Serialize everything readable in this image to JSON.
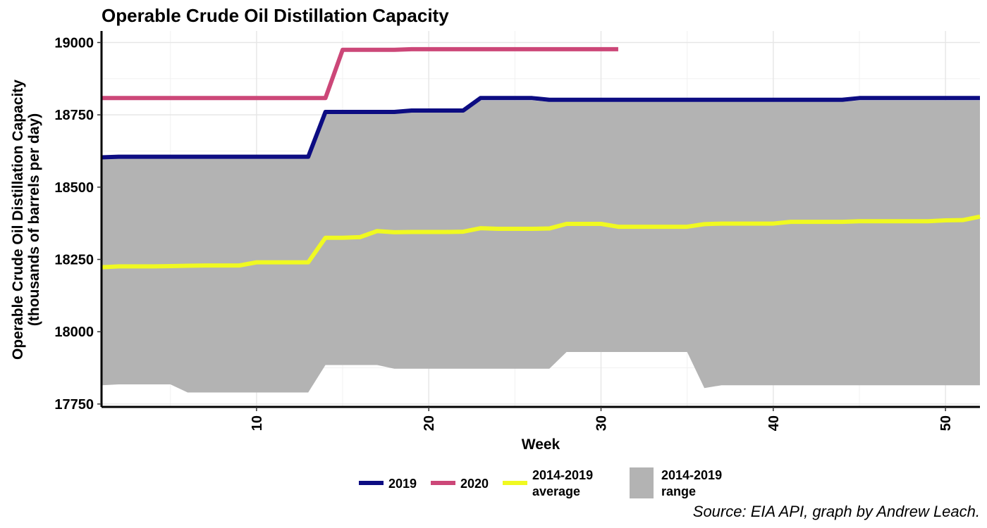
{
  "chart_data": {
    "type": "line",
    "title": "Operable Crude Oil Distillation Capacity",
    "xlabel": "Week",
    "ylabel_lines": [
      "Operable Crude Oil Distillation Capacity",
      "(thousands of barrels per day)"
    ],
    "xlim": [
      1,
      52
    ],
    "ylim": [
      17740,
      19040
    ],
    "x_ticks": [
      10,
      20,
      30,
      40,
      50
    ],
    "y_ticks": [
      17750,
      18000,
      18250,
      18500,
      18750,
      19000
    ],
    "grid": true,
    "legend_position": "bottom",
    "caption": "Source: EIA API, graph by Andrew Leach.",
    "range": {
      "name": "2014-2019 range",
      "color": "#b3b3b3",
      "x": [
        1,
        2,
        3,
        4,
        5,
        6,
        7,
        8,
        9,
        10,
        11,
        12,
        13,
        14,
        15,
        16,
        17,
        18,
        19,
        20,
        21,
        22,
        23,
        24,
        25,
        26,
        27,
        28,
        29,
        30,
        31,
        32,
        33,
        34,
        35,
        36,
        37,
        38,
        39,
        40,
        41,
        42,
        43,
        44,
        45,
        46,
        47,
        48,
        49,
        50,
        51,
        52
      ],
      "lower": [
        17815,
        17818,
        17818,
        17818,
        17818,
        17790,
        17790,
        17790,
        17790,
        17790,
        17790,
        17790,
        17790,
        17885,
        17885,
        17885,
        17885,
        17872,
        17872,
        17872,
        17872,
        17872,
        17872,
        17872,
        17872,
        17872,
        17872,
        17930,
        17930,
        17930,
        17930,
        17930,
        17930,
        17930,
        17930,
        17805,
        17815,
        17815,
        17815,
        17815,
        17815,
        17815,
        17815,
        17815,
        17815,
        17815,
        17815,
        17815,
        17815,
        17815,
        17815,
        17815
      ],
      "upper": [
        18600,
        18600,
        18600,
        18600,
        18600,
        18600,
        18600,
        18600,
        18600,
        18600,
        18600,
        18600,
        18600,
        18755,
        18755,
        18755,
        18755,
        18755,
        18760,
        18760,
        18760,
        18760,
        18800,
        18800,
        18800,
        18800,
        18795,
        18795,
        18795,
        18795,
        18795,
        18795,
        18795,
        18795,
        18795,
        18795,
        18795,
        18795,
        18795,
        18795,
        18795,
        18795,
        18795,
        18795,
        18800,
        18800,
        18800,
        18800,
        18800,
        18800,
        18800,
        18800
      ]
    },
    "series": [
      {
        "name": "2019",
        "color": "#0c0c82",
        "x": [
          1,
          2,
          3,
          4,
          5,
          6,
          7,
          8,
          9,
          10,
          11,
          12,
          13,
          14,
          15,
          16,
          17,
          18,
          19,
          20,
          21,
          22,
          23,
          24,
          25,
          26,
          27,
          28,
          29,
          30,
          31,
          32,
          33,
          34,
          35,
          36,
          37,
          38,
          39,
          40,
          41,
          42,
          43,
          44,
          45,
          46,
          47,
          48,
          49,
          50,
          51,
          52
        ],
        "values": [
          18603,
          18605,
          18605,
          18605,
          18605,
          18605,
          18605,
          18605,
          18605,
          18605,
          18605,
          18605,
          18605,
          18760,
          18760,
          18760,
          18760,
          18760,
          18765,
          18765,
          18765,
          18765,
          18808,
          18808,
          18808,
          18808,
          18802,
          18802,
          18802,
          18802,
          18802,
          18802,
          18802,
          18802,
          18802,
          18802,
          18802,
          18802,
          18802,
          18802,
          18802,
          18802,
          18802,
          18802,
          18808,
          18808,
          18808,
          18808,
          18808,
          18808,
          18808,
          18808
        ]
      },
      {
        "name": "2020",
        "color": "#cc4778",
        "x": [
          1,
          2,
          3,
          4,
          5,
          6,
          7,
          8,
          9,
          10,
          11,
          12,
          13,
          14,
          15,
          16,
          17,
          18,
          19,
          20,
          21,
          22,
          23,
          24,
          25,
          26,
          27,
          28,
          29,
          30,
          31
        ],
        "values": [
          18808,
          18808,
          18808,
          18808,
          18808,
          18808,
          18808,
          18808,
          18808,
          18808,
          18808,
          18808,
          18808,
          18808,
          18975,
          18975,
          18975,
          18975,
          18977,
          18977,
          18977,
          18977,
          18977,
          18977,
          18977,
          18977,
          18977,
          18977,
          18977,
          18977,
          18977
        ]
      },
      {
        "name": "2014-2019 average",
        "color": "#f0f921",
        "x": [
          1,
          2,
          3,
          4,
          5,
          6,
          7,
          8,
          9,
          10,
          11,
          12,
          13,
          14,
          15,
          16,
          17,
          18,
          19,
          20,
          21,
          22,
          23,
          24,
          25,
          26,
          27,
          28,
          29,
          30,
          31,
          32,
          33,
          34,
          35,
          36,
          37,
          38,
          39,
          40,
          41,
          42,
          43,
          44,
          45,
          46,
          47,
          48,
          49,
          50,
          51,
          52
        ],
        "values": [
          18223,
          18226,
          18226,
          18226,
          18227,
          18228,
          18229,
          18229,
          18229,
          18240,
          18240,
          18240,
          18240,
          18325,
          18325,
          18327,
          18348,
          18344,
          18345,
          18345,
          18345,
          18346,
          18358,
          18356,
          18356,
          18356,
          18357,
          18373,
          18373,
          18373,
          18363,
          18363,
          18363,
          18363,
          18363,
          18372,
          18374,
          18374,
          18374,
          18374,
          18380,
          18380,
          18380,
          18380,
          18382,
          18382,
          18382,
          18382,
          18382,
          18385,
          18386,
          18398
        ]
      }
    ],
    "legend": [
      {
        "kind": "line",
        "label_lines": [
          "2019"
        ],
        "color": "#0c0c82"
      },
      {
        "kind": "line",
        "label_lines": [
          "2020"
        ],
        "color": "#cc4778"
      },
      {
        "kind": "line",
        "label_lines": [
          "2014-2019",
          "average"
        ],
        "color": "#f0f921"
      },
      {
        "kind": "fill",
        "label_lines": [
          "2014-2019",
          "range"
        ],
        "color": "#b3b3b3"
      }
    ]
  }
}
